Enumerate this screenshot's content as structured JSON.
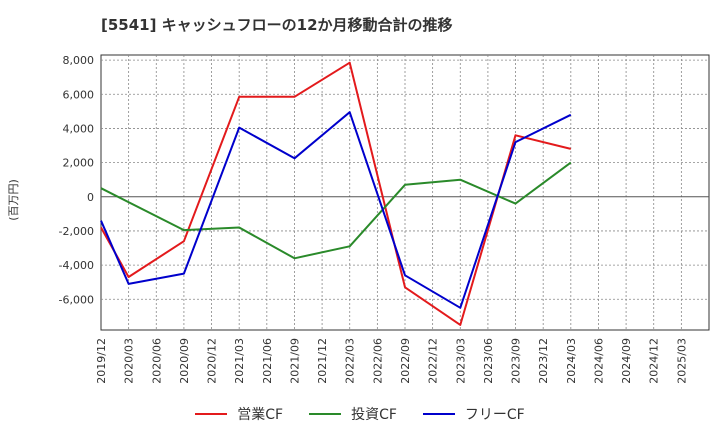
{
  "chart_data": {
    "type": "line",
    "title": "[5541]  キャッシュフローの12か月移動合計の推移",
    "ylabel": "(百万円)",
    "xlabel": "",
    "ylim": [
      -7800,
      8300
    ],
    "yticks": [
      8000,
      6000,
      4000,
      2000,
      0,
      -2000,
      -4000,
      -6000
    ],
    "ytick_labels": [
      "8,000",
      "6,000",
      "4,000",
      "2,000",
      "0",
      "-2,000",
      "-4,000",
      "-6,000"
    ],
    "categories": [
      "2019/12",
      "2020/03",
      "2020/06",
      "2020/09",
      "2020/12",
      "2021/03",
      "2021/06",
      "2021/09",
      "2021/12",
      "2022/03",
      "2022/06",
      "2022/09",
      "2022/12",
      "2023/03",
      "2023/06",
      "2023/09",
      "2023/12",
      "2024/03",
      "2024/06",
      "2024/09",
      "2024/12",
      "2025/03"
    ],
    "grid": true,
    "legend_position": "bottom",
    "series": [
      {
        "name": "営業CF",
        "color": "#e31a1c",
        "values": [
          -1800,
          -4700,
          null,
          -2600,
          null,
          5850,
          null,
          5850,
          null,
          7850,
          null,
          -5300,
          null,
          -7500,
          null,
          3600,
          null,
          2800,
          null,
          null,
          null,
          null
        ]
      },
      {
        "name": "投資CF",
        "color": "#2a8a2a",
        "values": [
          500,
          null,
          null,
          -1950,
          null,
          -1800,
          null,
          -3600,
          null,
          -2900,
          null,
          700,
          null,
          1000,
          null,
          -400,
          null,
          2000,
          null,
          null,
          null,
          null
        ]
      },
      {
        "name": "フリーCF",
        "color": "#0000cc",
        "values": [
          -1400,
          -5100,
          null,
          -4500,
          null,
          4050,
          null,
          2250,
          null,
          4950,
          null,
          -4600,
          null,
          -6500,
          null,
          3200,
          null,
          4800,
          null,
          null,
          null,
          null
        ]
      }
    ]
  }
}
